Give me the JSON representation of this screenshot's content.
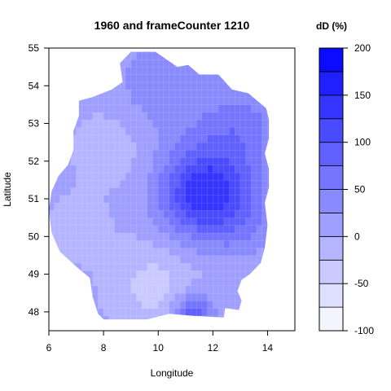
{
  "chart_data": {
    "type": "heatmap",
    "title": "1960 and frameCounter 1210",
    "xlabel": "Longitude",
    "ylabel": "Latitude",
    "xlim": [
      6,
      15
    ],
    "ylim": [
      47.5,
      55
    ],
    "x_ticks": [
      6,
      8,
      10,
      12,
      14
    ],
    "y_ticks": [
      48,
      49,
      50,
      51,
      52,
      53,
      54,
      55
    ],
    "legend": {
      "title": "dD (%)",
      "range": [
        -100,
        200
      ],
      "ticks": [
        -100,
        -50,
        0,
        50,
        100,
        150,
        200
      ],
      "level_step": 25,
      "color_low": "#ffffff",
      "color_high": "#0000ff"
    },
    "region_outline": [
      [
        8.0,
        47.8
      ],
      [
        9.6,
        47.8
      ],
      [
        10.4,
        47.95
      ],
      [
        11.2,
        47.9
      ],
      [
        12.4,
        47.85
      ],
      [
        12.45,
        48.1
      ],
      [
        12.95,
        48.05
      ],
      [
        13.05,
        48.3
      ],
      [
        12.9,
        48.55
      ],
      [
        13.05,
        48.85
      ],
      [
        13.35,
        49.0
      ],
      [
        13.75,
        49.3
      ],
      [
        13.9,
        49.7
      ],
      [
        14.0,
        50.3
      ],
      [
        13.9,
        50.9
      ],
      [
        14.05,
        51.3
      ],
      [
        14.05,
        51.8
      ],
      [
        13.9,
        52.2
      ],
      [
        14.05,
        52.6
      ],
      [
        14.05,
        53.1
      ],
      [
        13.95,
        53.4
      ],
      [
        13.3,
        53.8
      ],
      [
        12.7,
        53.9
      ],
      [
        12.2,
        54.3
      ],
      [
        11.5,
        54.3
      ],
      [
        11.1,
        54.55
      ],
      [
        10.7,
        54.5
      ],
      [
        10.3,
        54.7
      ],
      [
        9.9,
        54.9
      ],
      [
        9.0,
        54.9
      ],
      [
        8.6,
        54.6
      ],
      [
        8.7,
        54.1
      ],
      [
        8.3,
        53.9
      ],
      [
        7.6,
        53.7
      ],
      [
        7.1,
        53.6
      ],
      [
        7.1,
        53.2
      ],
      [
        6.9,
        52.8
      ],
      [
        6.9,
        52.3
      ],
      [
        6.7,
        51.9
      ],
      [
        6.35,
        51.6
      ],
      [
        6.1,
        51.2
      ],
      [
        6.0,
        50.7
      ],
      [
        6.1,
        50.1
      ],
      [
        6.4,
        49.6
      ],
      [
        7.0,
        49.2
      ],
      [
        7.5,
        48.9
      ],
      [
        7.6,
        48.4
      ],
      [
        7.8,
        47.95
      ]
    ],
    "field_centers": [
      {
        "lon": 11.3,
        "lat": 51.1,
        "value": 85,
        "spread": 1.0
      },
      {
        "lon": 12.2,
        "lat": 51.9,
        "value": 55,
        "spread": 1.2
      },
      {
        "lon": 12.7,
        "lat": 50.6,
        "value": 55,
        "spread": 1.1
      },
      {
        "lon": 11.3,
        "lat": 47.95,
        "value": 90,
        "spread": 0.5
      },
      {
        "lon": 10.2,
        "lat": 54.1,
        "value": 40,
        "spread": 1.2
      },
      {
        "lon": 13.2,
        "lat": 53.1,
        "value": 40,
        "spread": 1.0
      },
      {
        "lon": 8.3,
        "lat": 52.4,
        "value": -20,
        "spread": 0.9
      },
      {
        "lon": 9.8,
        "lat": 48.7,
        "value": -40,
        "spread": 1.0
      },
      {
        "lon": 7.1,
        "lat": 50.2,
        "value": -15,
        "spread": 0.8
      },
      {
        "lon": 12.0,
        "lat": 49.2,
        "value": -10,
        "spread": 0.6
      }
    ],
    "field_base": 5
  }
}
